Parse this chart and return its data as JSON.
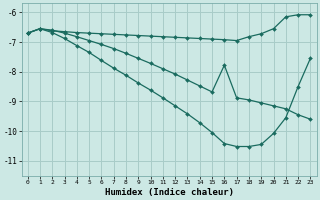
{
  "background_color": "#cce8e4",
  "grid_color": "#a8ccc8",
  "line_color": "#1a6b5f",
  "xlabel": "Humidex (Indice chaleur)",
  "xlim": [
    -0.5,
    23.5
  ],
  "ylim": [
    -11.5,
    -5.7
  ],
  "yticks": [
    -11,
    -10,
    -9,
    -8,
    -7,
    -6
  ],
  "xticks": [
    0,
    1,
    2,
    3,
    4,
    5,
    6,
    7,
    8,
    9,
    10,
    11,
    12,
    13,
    14,
    15,
    16,
    17,
    18,
    19,
    20,
    21,
    22,
    23
  ],
  "series": [
    {
      "x": [
        0,
        1,
        2,
        3,
        4,
        5,
        6,
        7,
        8,
        9,
        10,
        11,
        12,
        13,
        14,
        15,
        16,
        17,
        18,
        19,
        20,
        21,
        22,
        23
      ],
      "y": [
        -6.7,
        -6.55,
        -6.62,
        -6.65,
        -6.68,
        -6.7,
        -6.72,
        -6.74,
        -6.76,
        -6.78,
        -6.8,
        -6.82,
        -6.84,
        -6.86,
        -6.88,
        -6.9,
        -6.92,
        -6.95,
        -6.82,
        -6.72,
        -6.55,
        -6.15,
        -6.08,
        -6.08
      ]
    },
    {
      "x": [
        0,
        1,
        2,
        3,
        4,
        5,
        6,
        7,
        8,
        9,
        10,
        11,
        12,
        13,
        14,
        15,
        16,
        17,
        18,
        19,
        20,
        21,
        22,
        23
      ],
      "y": [
        -6.7,
        -6.55,
        -6.68,
        -6.88,
        -7.12,
        -7.35,
        -7.62,
        -7.88,
        -8.12,
        -8.38,
        -8.62,
        -8.88,
        -9.15,
        -9.42,
        -9.72,
        -10.05,
        -10.42,
        -10.52,
        -10.52,
        -10.45,
        -10.08,
        -9.55,
        -8.5,
        -7.55
      ]
    },
    {
      "x": [
        0,
        1,
        2,
        3,
        4,
        5,
        6,
        7,
        8,
        9,
        10,
        11,
        12,
        13,
        14,
        15,
        16,
        17,
        18,
        19,
        20,
        21,
        22,
        23
      ],
      "y": [
        -6.7,
        -6.55,
        -6.6,
        -6.7,
        -6.82,
        -6.95,
        -7.08,
        -7.22,
        -7.38,
        -7.55,
        -7.72,
        -7.9,
        -8.08,
        -8.28,
        -8.48,
        -8.68,
        -7.78,
        -8.88,
        -8.95,
        -9.05,
        -9.15,
        -9.25,
        -9.45,
        -9.6
      ]
    }
  ]
}
